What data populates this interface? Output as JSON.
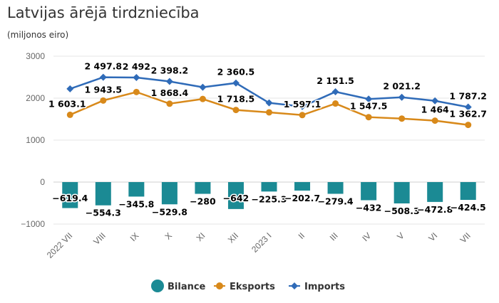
{
  "title": "Latvijas ārējā tirdzniecība",
  "subtitle": "(miljonos eiro)",
  "chart_data": {
    "type": "bar+line",
    "categories": [
      "2022 VII",
      "VIII",
      "IX",
      "X",
      "XI",
      "XII",
      "2023 I",
      "II",
      "III",
      "IV",
      "V",
      "VI",
      "VII"
    ],
    "ylim": [
      -1000,
      3000
    ],
    "yticks": [
      3000,
      2000,
      1000,
      0,
      -1000
    ],
    "grid": true,
    "legend_position": "bottom",
    "series": [
      {
        "name": "Bilance",
        "type": "bar",
        "color": "#1b8a94",
        "values": [
          -619.4,
          -554.3,
          -345.8,
          -529.8,
          -280,
          -642,
          -225.3,
          -202.7,
          -279.4,
          -432,
          -508.3,
          -472.8,
          -424.5
        ],
        "labels": [
          "−619.4",
          "−554.3",
          "−345.8",
          "−529.8",
          "−280",
          "−642",
          "−225.3",
          "−202.7",
          "−279.4",
          "−432",
          "−508.3",
          "−472.8",
          "−424.5"
        ]
      },
      {
        "name": "Eksports",
        "type": "line",
        "color": "#d8891a",
        "values": [
          1603.1,
          1943.5,
          2146.2,
          1868.4,
          1980.5,
          1718.5,
          1661.8,
          1597.1,
          1872.1,
          1547.5,
          1512.9,
          1464,
          1362.7
        ],
        "labels": [
          "1 603.1",
          "1 943.5",
          "",
          "1 868.4",
          "",
          "1 718.5",
          "",
          "1 597.1",
          "",
          "1 547.5",
          "",
          "1 464",
          "1 362.7"
        ]
      },
      {
        "name": "Imports",
        "type": "line",
        "color": "#2f6bb8",
        "values": [
          2222.5,
          2497.8,
          2492,
          2398.2,
          2260.5,
          2360.5,
          1887.1,
          1799.8,
          2151.5,
          1979.5,
          2021.2,
          1936.8,
          1787.2
        ],
        "labels": [
          "",
          "2 497.8",
          "2 492",
          "2 398.2",
          "",
          "2 360.5",
          "",
          "",
          "2 151.5",
          "",
          "2 021.2",
          "",
          "1 787.2"
        ]
      }
    ]
  }
}
